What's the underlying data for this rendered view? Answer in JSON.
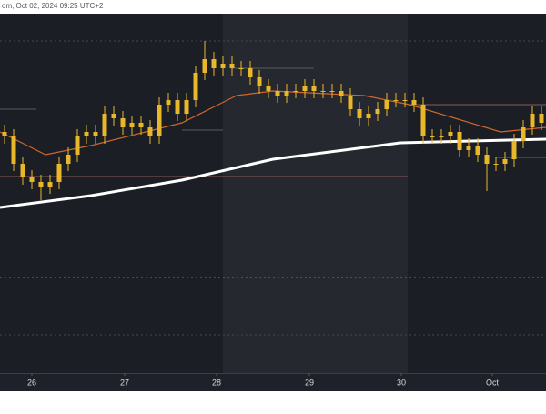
{
  "chart_data": {
    "type": "candlestick",
    "header": "om, Oct 02, 2024 09:25 UTC+2",
    "color": "#e9b72a",
    "x": [
      0,
      1,
      2,
      3,
      4,
      5,
      6,
      7,
      8,
      9,
      10,
      11,
      12,
      13,
      14,
      15,
      16,
      17,
      18,
      19,
      20,
      21,
      22,
      23,
      24,
      25,
      26,
      27,
      28,
      29,
      30,
      31,
      32,
      33,
      34,
      35,
      36,
      37,
      38,
      39,
      40,
      41,
      42,
      43,
      44,
      45,
      46,
      47,
      48,
      49,
      50,
      51,
      52,
      53,
      54,
      55,
      56,
      57,
      58,
      59
    ],
    "open": [
      265,
      260,
      230,
      215,
      210,
      205,
      210,
      230,
      240,
      260,
      265,
      260,
      285,
      280,
      270,
      275,
      270,
      260,
      295,
      300,
      285,
      300,
      330,
      345,
      335,
      340,
      335,
      335,
      325,
      315,
      310,
      305,
      310,
      310,
      315,
      310,
      310,
      310,
      305,
      290,
      280,
      285,
      290,
      300,
      300,
      300,
      295,
      260,
      260,
      260,
      265,
      245,
      250,
      240,
      230,
      230,
      235,
      255,
      270,
      285
    ],
    "high": [
      273,
      268,
      238,
      223,
      218,
      218,
      238,
      248,
      268,
      273,
      273,
      293,
      293,
      288,
      283,
      283,
      278,
      303,
      308,
      308,
      308,
      338,
      365,
      353,
      348,
      348,
      343,
      343,
      333,
      323,
      318,
      318,
      318,
      323,
      323,
      318,
      318,
      318,
      313,
      298,
      293,
      298,
      308,
      308,
      308,
      308,
      303,
      268,
      268,
      273,
      273,
      258,
      258,
      248,
      238,
      243,
      263,
      278,
      293,
      293
    ],
    "low": [
      252,
      222,
      207,
      202,
      190,
      197,
      202,
      222,
      232,
      252,
      252,
      252,
      272,
      262,
      262,
      262,
      252,
      252,
      287,
      277,
      277,
      292,
      322,
      327,
      327,
      327,
      327,
      317,
      307,
      302,
      297,
      297,
      302,
      302,
      302,
      302,
      302,
      297,
      282,
      272,
      272,
      277,
      282,
      292,
      292,
      287,
      252,
      252,
      252,
      252,
      237,
      237,
      232,
      200,
      222,
      222,
      227,
      247,
      262,
      267
    ],
    "close": [
      260,
      230,
      215,
      210,
      205,
      210,
      230,
      240,
      260,
      265,
      260,
      285,
      280,
      270,
      275,
      270,
      260,
      295,
      300,
      285,
      300,
      330,
      345,
      335,
      340,
      335,
      335,
      325,
      315,
      310,
      305,
      310,
      310,
      315,
      310,
      310,
      310,
      305,
      290,
      280,
      285,
      290,
      300,
      300,
      300,
      295,
      260,
      260,
      260,
      265,
      245,
      250,
      240,
      230,
      230,
      235,
      255,
      270,
      285,
      275
    ],
    "series": [
      {
        "color": "#ffffff",
        "x": [
          -0.5,
          9.5,
          19.5,
          29.5,
          43.5,
          59.5
        ],
        "values": [
          182,
          195,
          212,
          235,
          253,
          257
        ]
      },
      {
        "color": "#d0662a",
        "x": [
          -0.5,
          4.5,
          9.5,
          19.5,
          25.5,
          29.5,
          39.5,
          44.5,
          49.5,
          54.5,
          59.5
        ],
        "values": [
          265,
          240,
          250,
          275,
          305,
          310,
          305,
          295,
          280,
          265,
          270
        ]
      }
    ],
    "levels": [
      {
        "value": 216,
        "from": -0.5,
        "to": 44.3,
        "color": "#8a5a5a",
        "dash": false
      },
      {
        "value": 295,
        "from": 44.3,
        "to": 59.5,
        "color": "#8a5a5a",
        "dash": false
      },
      {
        "value": 237,
        "from": 54,
        "to": 59.5,
        "color": "#8a5a5a",
        "dash": false
      },
      {
        "value": 335,
        "from": 25,
        "to": 34,
        "color": "#555a66",
        "dash": false
      },
      {
        "value": 267,
        "from": 19.5,
        "to": 24,
        "color": "#555a66",
        "dash": false
      },
      {
        "value": 290,
        "from": -0.5,
        "to": 3.5,
        "color": "#555a66",
        "dash": false
      },
      {
        "value": 105,
        "from": -0.5,
        "to": 59.5,
        "color": "#8a7a2a",
        "dash": true
      },
      {
        "value": 365,
        "from": -0.5,
        "to": 59.5,
        "color": "#444854",
        "dash": true
      },
      {
        "value": 42,
        "from": -0.5,
        "to": 59.5,
        "color": "#444854",
        "dash": true
      }
    ],
    "highlight": [
      24,
      44.3
    ],
    "xlim": [
      -0.5,
      59.5
    ],
    "ylim": [
      0,
      395
    ],
    "xticks": [
      {
        "value": 3.0,
        "label": "26"
      },
      {
        "value": 13.2,
        "label": "27"
      },
      {
        "value": 23.3,
        "label": "28"
      },
      {
        "value": 33.5,
        "label": "29"
      },
      {
        "value": 43.6,
        "label": "30"
      },
      {
        "value": 53.6,
        "label": "Oct"
      }
    ]
  }
}
